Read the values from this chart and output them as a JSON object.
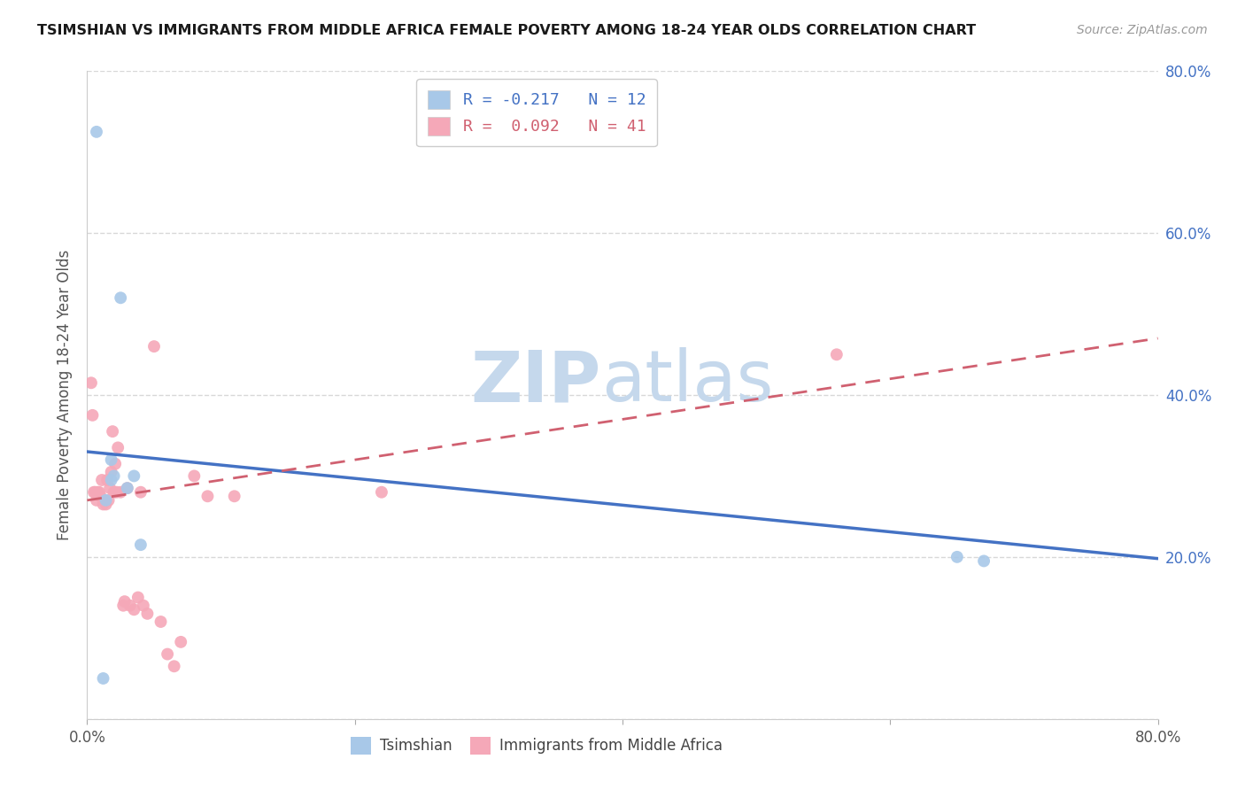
{
  "title": "TSIMSHIAN VS IMMIGRANTS FROM MIDDLE AFRICA FEMALE POVERTY AMONG 18-24 YEAR OLDS CORRELATION CHART",
  "source": "Source: ZipAtlas.com",
  "ylabel": "Female Poverty Among 18-24 Year Olds",
  "xlim": [
    0,
    0.8
  ],
  "ylim": [
    0,
    0.8
  ],
  "xtick_positions": [
    0.0,
    0.2,
    0.4,
    0.6,
    0.8
  ],
  "ytick_positions": [
    0.0,
    0.2,
    0.4,
    0.6,
    0.8
  ],
  "background_color": "#ffffff",
  "grid_color": "#d8d8d8",
  "tsimshian_color": "#a8c8e8",
  "immigrant_color": "#f5a8b8",
  "tsimshian_line_color": "#4472c4",
  "immigrant_line_color": "#d06070",
  "tsimshian_x": [
    0.007,
    0.018,
    0.014,
    0.018,
    0.02,
    0.025,
    0.03,
    0.035,
    0.04,
    0.012,
    0.65,
    0.67
  ],
  "tsimshian_y": [
    0.725,
    0.295,
    0.27,
    0.32,
    0.3,
    0.52,
    0.285,
    0.3,
    0.215,
    0.05,
    0.2,
    0.195
  ],
  "immigrant_x": [
    0.003,
    0.004,
    0.005,
    0.006,
    0.007,
    0.008,
    0.009,
    0.01,
    0.011,
    0.012,
    0.013,
    0.014,
    0.015,
    0.016,
    0.017,
    0.018,
    0.019,
    0.02,
    0.021,
    0.022,
    0.023,
    0.025,
    0.027,
    0.028,
    0.03,
    0.032,
    0.035,
    0.038,
    0.04,
    0.042,
    0.045,
    0.05,
    0.055,
    0.06,
    0.065,
    0.07,
    0.08,
    0.09,
    0.11,
    0.22,
    0.56
  ],
  "immigrant_y": [
    0.415,
    0.375,
    0.28,
    0.28,
    0.27,
    0.28,
    0.28,
    0.275,
    0.295,
    0.265,
    0.27,
    0.265,
    0.295,
    0.27,
    0.285,
    0.305,
    0.355,
    0.28,
    0.315,
    0.28,
    0.335,
    0.28,
    0.14,
    0.145,
    0.285,
    0.14,
    0.135,
    0.15,
    0.28,
    0.14,
    0.13,
    0.46,
    0.12,
    0.08,
    0.065,
    0.095,
    0.3,
    0.275,
    0.275,
    0.28,
    0.45
  ],
  "watermark_zip": "ZIP",
  "watermark_atlas": "atlas",
  "watermark_color": "#c5d8ec"
}
